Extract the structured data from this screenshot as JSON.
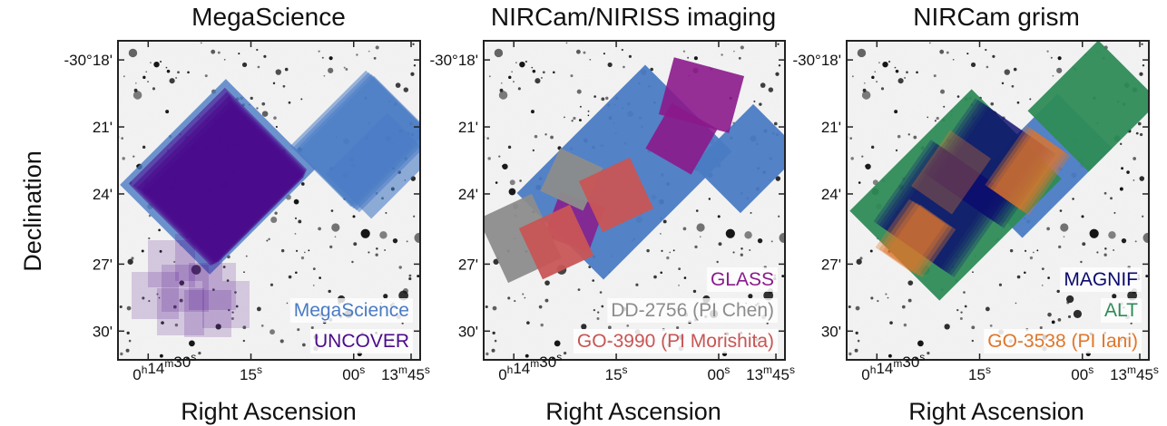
{
  "figure": {
    "ylabel": "Declination",
    "xlabel": "Right Ascension"
  },
  "colors": {
    "megascience": "#4a7bc4",
    "uncover": "#4b0a8c",
    "glass": "#8b1a8b",
    "dd2756": "#8c8c8c",
    "go3990": "#c85555",
    "magnif": "#0a0a6e",
    "alt": "#2e8b57",
    "go3538": "#e0762a"
  },
  "chart_data": [
    {
      "type": "map",
      "title": "MegaScience",
      "xlabel": "Right Ascension",
      "ylabel": "Declination",
      "y_ticks": [
        "-30°18'",
        "21'",
        "24'",
        "27'",
        "30'"
      ],
      "x_ticks": [
        "0h14m30s",
        "15s",
        "00s",
        "13m45s"
      ],
      "legend": [
        "MegaScience",
        "UNCOVER"
      ]
    },
    {
      "type": "map",
      "title": "NIRCam/NIRISS imaging",
      "xlabel": "Right Ascension",
      "y_ticks": [
        "-30°18'",
        "21'",
        "24'",
        "27'",
        "30'"
      ],
      "x_ticks": [
        "0h14m30s",
        "15s",
        "00s",
        "13m45s"
      ],
      "legend": [
        "GLASS",
        "DD-2756 (PI Chen)",
        "GO-3990 (PI Morishita)"
      ]
    },
    {
      "type": "map",
      "title": "NIRCam grism",
      "xlabel": "Right Ascension",
      "y_ticks": [
        "-30°18'",
        "21'",
        "24'",
        "27'",
        "30'"
      ],
      "x_ticks": [
        "0h14m30s",
        "15s",
        "00s",
        "13m45s"
      ],
      "legend": [
        "MAGNIF",
        "ALT",
        "GO-3538 (PI Iani)"
      ]
    }
  ],
  "panels": [
    {
      "title": "MegaScience",
      "yticks": [
        "-30°18'",
        "21'",
        "24'",
        "27'",
        "30'"
      ],
      "xticks": [
        {
          "main": "0",
          "h": "h",
          "m1": "14",
          "mm": "m",
          "s1": "30",
          "ss": "s"
        },
        {
          "main": "15",
          "ss": "s"
        },
        {
          "main": "00",
          "ss": "s"
        },
        {
          "main": "13",
          "mm": "m",
          "s1": "45",
          "ss": "s"
        }
      ],
      "legend": [
        {
          "label": "MegaScience",
          "color": "#4a7bc4"
        },
        {
          "label": "UNCOVER",
          "color": "#4b0a8c"
        }
      ]
    },
    {
      "title": "NIRCam/NIRISS imaging",
      "yticks": [
        "-30°18'",
        "21'",
        "24'",
        "27'",
        "30'"
      ],
      "legend": [
        {
          "label": "GLASS",
          "color": "#8b1a8b"
        },
        {
          "label": "DD-2756 (PI Chen)",
          "color": "#8c8c8c"
        },
        {
          "label": "GO-3990 (PI Morishita)",
          "color": "#c85555"
        }
      ]
    },
    {
      "title": "NIRCam grism",
      "yticks": [
        "-30°18'",
        "21'",
        "24'",
        "27'",
        "30'"
      ],
      "legend": [
        {
          "label": "MAGNIF",
          "color": "#0a0a6e"
        },
        {
          "label": "ALT",
          "color": "#2e8b57"
        },
        {
          "label": "GO-3538 (PI Iani)",
          "color": "#e0762a"
        }
      ]
    }
  ]
}
